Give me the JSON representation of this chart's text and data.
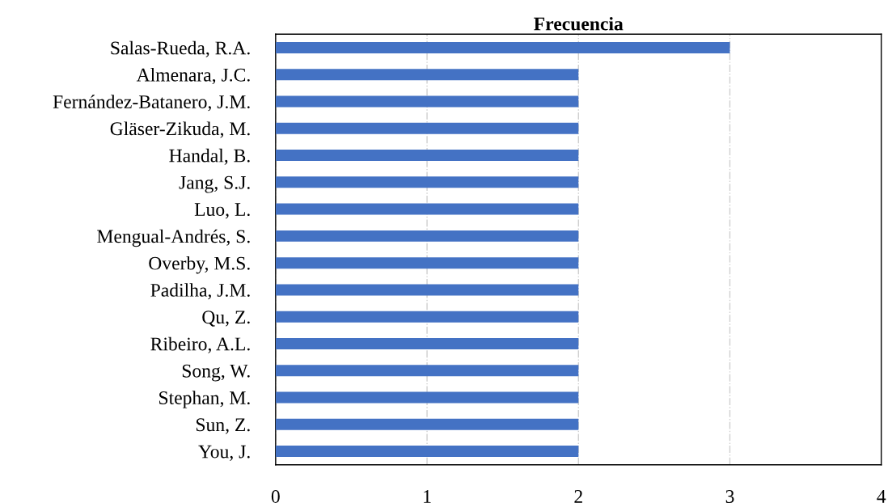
{
  "chart_data": {
    "type": "bar",
    "orientation": "horizontal",
    "title": "Frecuencia",
    "categories": [
      "Salas-Rueda, R.A.",
      "Almenara, J.C.",
      "Fernández-Batanero, J.M.",
      "Gläser-Zikuda, M.",
      "Handal, B.",
      "Jang, S.J.",
      "Luo, L.",
      "Mengual-Andrés, S.",
      "Overby, M.S.",
      "Padilha, J.M.",
      "Qu, Z.",
      "Ribeiro, A.L.",
      "Song, W.",
      "Stephan, M.",
      "Sun, Z.",
      "You, J."
    ],
    "values": [
      3,
      2,
      2,
      2,
      2,
      2,
      2,
      2,
      2,
      2,
      2,
      2,
      2,
      2,
      2,
      2
    ],
    "color": "#4472c4",
    "xlim": [
      0,
      4
    ],
    "xticks": [
      0,
      1,
      2,
      3,
      4
    ],
    "grid": "x",
    "legend": false
  }
}
